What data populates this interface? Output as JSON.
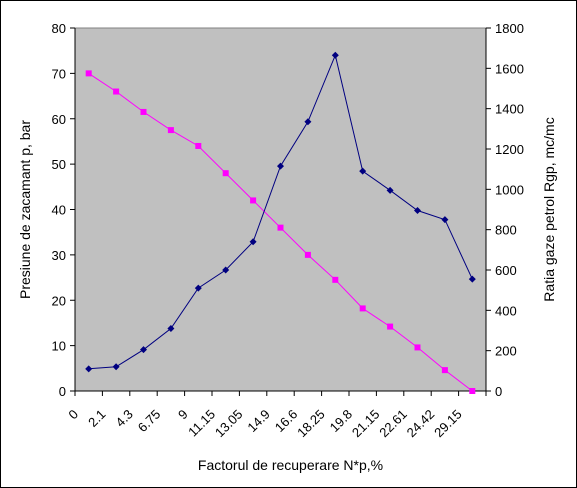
{
  "chart_data": {
    "type": "line",
    "categories": [
      "0",
      "2.1",
      "4.3",
      "6.75",
      "9",
      "11.15",
      "13.05",
      "14.9",
      "16.6",
      "18.25",
      "19.8",
      "21.15",
      "22.61",
      "24.42",
      "29.15"
    ],
    "xlabel": "Factorul de recuperare N*p,%",
    "ylabel_left": "Presiune de zacamant p, bar",
    "ylabel_right": "Ratia gaze petrol Rgp, mc/mc",
    "ylim_left": [
      0,
      80
    ],
    "ylim_right": [
      0,
      1800
    ],
    "yticks_left": [
      "0",
      "10",
      "20",
      "30",
      "40",
      "50",
      "60",
      "70",
      "80"
    ],
    "yticks_right": [
      "0",
      "200",
      "400",
      "600",
      "800",
      "1000",
      "1200",
      "1400",
      "1600",
      "1800"
    ],
    "plot_background": "#c0c0c0",
    "grid": false,
    "legend": "none",
    "series": [
      {
        "axis": "left",
        "color": "#ff00ff",
        "marker": "square",
        "values": [
          70,
          66,
          61.5,
          57.5,
          54,
          48,
          42,
          36,
          30,
          24.5,
          18.2,
          14.2,
          9.6,
          4.6,
          0
        ]
      },
      {
        "axis": "right",
        "color": "#000080",
        "marker": "diamond",
        "values": [
          110,
          120,
          205,
          310,
          510,
          600,
          740,
          1115,
          1335,
          1665,
          1090,
          995,
          895,
          850,
          555
        ]
      }
    ]
  }
}
